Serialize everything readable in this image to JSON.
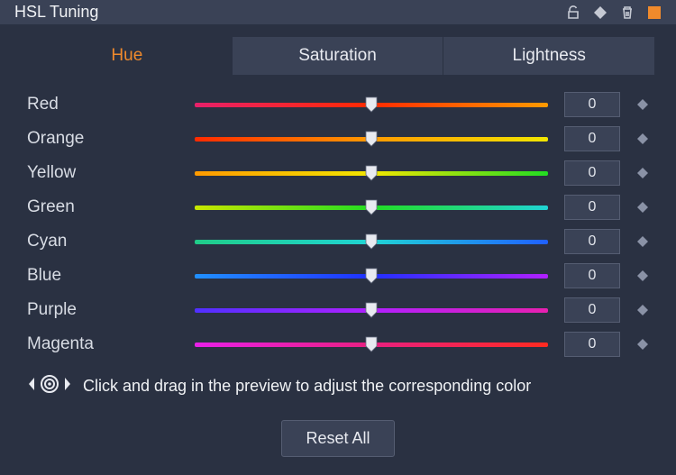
{
  "panel": {
    "title": "HSL Tuning"
  },
  "tabs": {
    "hue": "Hue",
    "saturation": "Saturation",
    "lightness": "Lightness",
    "active": "hue"
  },
  "colors": {
    "panel_bg": "#2a3142",
    "header_bg": "#3a4256",
    "accent": "#f08a2c",
    "text": "#d0d4dc",
    "box_bg": "#3a4256",
    "box_border": "#555d72",
    "diamond": "#8a92a6",
    "thumb": "#e8eaf0"
  },
  "channels": [
    {
      "label": "Red",
      "value": 0,
      "gradient": [
        "#e8206a",
        "#ff2a00",
        "#ff9a00"
      ]
    },
    {
      "label": "Orange",
      "value": 0,
      "gradient": [
        "#ff2a00",
        "#ff9a00",
        "#f2e600"
      ]
    },
    {
      "label": "Yellow",
      "value": 0,
      "gradient": [
        "#ff9a00",
        "#f2e600",
        "#22dd22"
      ]
    },
    {
      "label": "Green",
      "value": 0,
      "gradient": [
        "#c8e600",
        "#22dd22",
        "#20d4d4"
      ]
    },
    {
      "label": "Cyan",
      "value": 0,
      "gradient": [
        "#20cc88",
        "#20d4d4",
        "#2060ff"
      ]
    },
    {
      "label": "Blue",
      "value": 0,
      "gradient": [
        "#2090ff",
        "#2030ff",
        "#b020ff"
      ]
    },
    {
      "label": "Purple",
      "value": 0,
      "gradient": [
        "#5030ff",
        "#b020ff",
        "#e820b0"
      ]
    },
    {
      "label": "Magenta",
      "value": 0,
      "gradient": [
        "#e820e8",
        "#e82080",
        "#ff2a20"
      ]
    }
  ],
  "hint": "Click and drag in the preview to adjust the corresponding color",
  "reset_label": "Reset All"
}
